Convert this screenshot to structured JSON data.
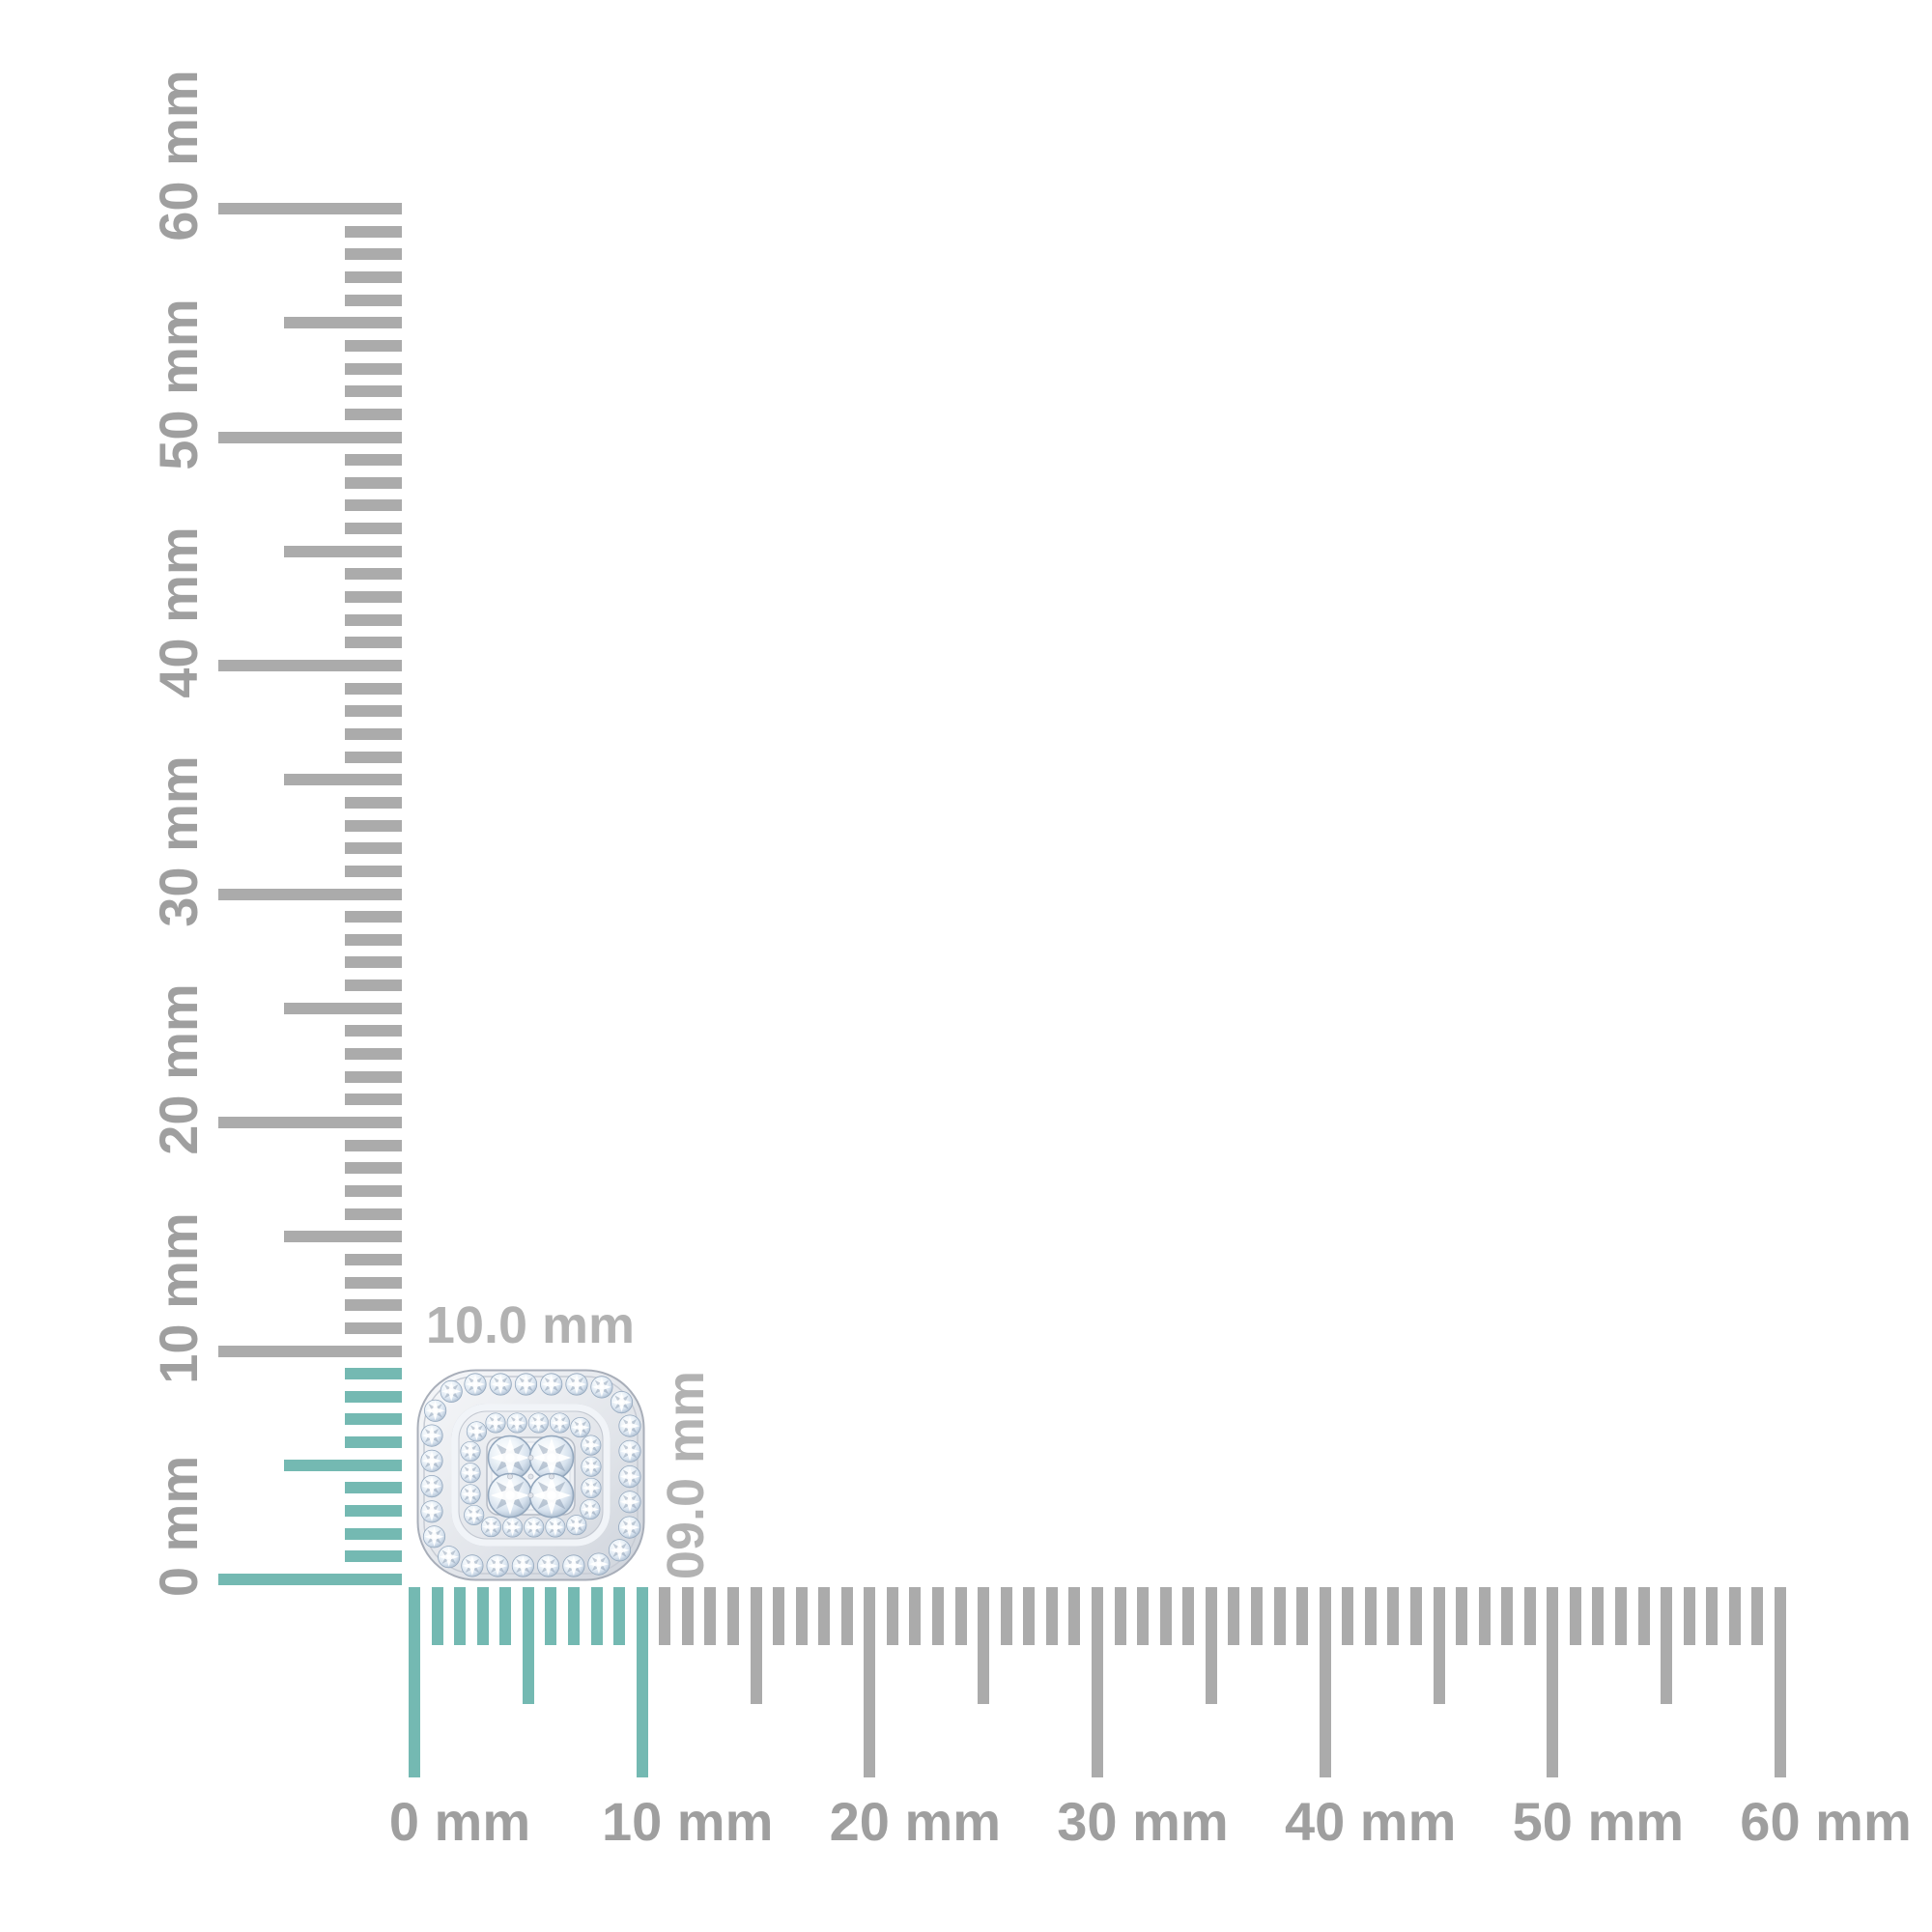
{
  "page": {
    "background": "#ffffff"
  },
  "colors": {
    "tick_gray": "#ababab",
    "label_gray": "#9f9f9f",
    "highlight_teal": "#74b9b2",
    "annotation_gray": "#b2b2b2"
  },
  "rulers": {
    "unit": "mm",
    "vertical": {
      "min_mm": 0,
      "max_mm": 60,
      "minor_step_mm": 1,
      "half_step_mm": 5,
      "major_step_mm": 10,
      "highlight_mm_range": [
        0,
        9
      ],
      "labels": [
        "0 mm",
        "10 mm",
        "20 mm",
        "30 mm",
        "40 mm",
        "50 mm",
        "60 mm"
      ]
    },
    "horizontal": {
      "min_mm": 0,
      "max_mm": 60,
      "minor_step_mm": 1,
      "half_step_mm": 5,
      "major_step_mm": 10,
      "highlight_mm_range": [
        0,
        10
      ],
      "labels": [
        "0 mm",
        "10 mm",
        "20 mm",
        "30 mm",
        "40 mm",
        "50 mm",
        "60 mm"
      ]
    }
  },
  "measurement": {
    "width_label": "10.0 mm",
    "height_label": "09.0 mm",
    "item_image": "diamond-cluster-stud-earring"
  }
}
